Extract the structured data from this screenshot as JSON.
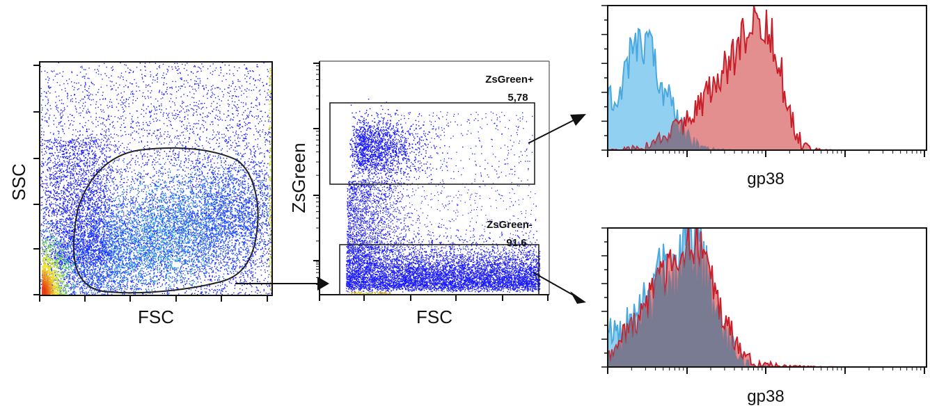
{
  "chart_data": [
    {
      "type": "scatter",
      "panel": "density-plot-1",
      "xlabel": "FSC",
      "ylabel": "SSC",
      "coloring": "density (blue to green to yellow to red)",
      "gate": {
        "shape": "polygon",
        "points_to": "density-plot-2"
      }
    },
    {
      "type": "scatter",
      "panel": "density-plot-2",
      "xlabel": "FSC",
      "ylabel": "ZsGreen",
      "gates": [
        {
          "name": "ZsGreen+",
          "percent": "5,78",
          "points_to": "histogram-top"
        },
        {
          "name": "ZsGreen-",
          "percent": "91,6",
          "points_to": "histogram-bottom"
        }
      ]
    },
    {
      "type": "area",
      "panel": "histogram-top",
      "xlabel": "gp38",
      "x_scale": "log",
      "series": [
        {
          "color": "#7ec8ee",
          "peak": "low"
        },
        {
          "color": "#d96a6a",
          "peak": "high"
        }
      ]
    },
    {
      "type": "area",
      "panel": "histogram-bottom",
      "xlabel": "gp38",
      "x_scale": "log",
      "series": [
        {
          "color": "#7ec8ee",
          "peak": "low"
        },
        {
          "color": "#d96a6a",
          "peak": "low"
        }
      ]
    }
  ],
  "labels": {
    "p1_x": "FSC",
    "p1_y": "SSC",
    "p2_x": "FSC",
    "p2_y": "ZsGreen",
    "gate_pos_name": "ZsGreen+",
    "gate_pos_val": "5,78",
    "gate_neg_name": "ZsGreen-",
    "gate_neg_val": "91,6",
    "h1_x": "gp38",
    "h2_x": "gp38"
  },
  "colors": {
    "blue_fill": "#7ec8ee",
    "blue_line": "#4aa8e0",
    "red_fill": "#d96a6a",
    "red_line": "#c8202a",
    "overlap": "#6a7a93",
    "dots": "#1a1aff"
  }
}
